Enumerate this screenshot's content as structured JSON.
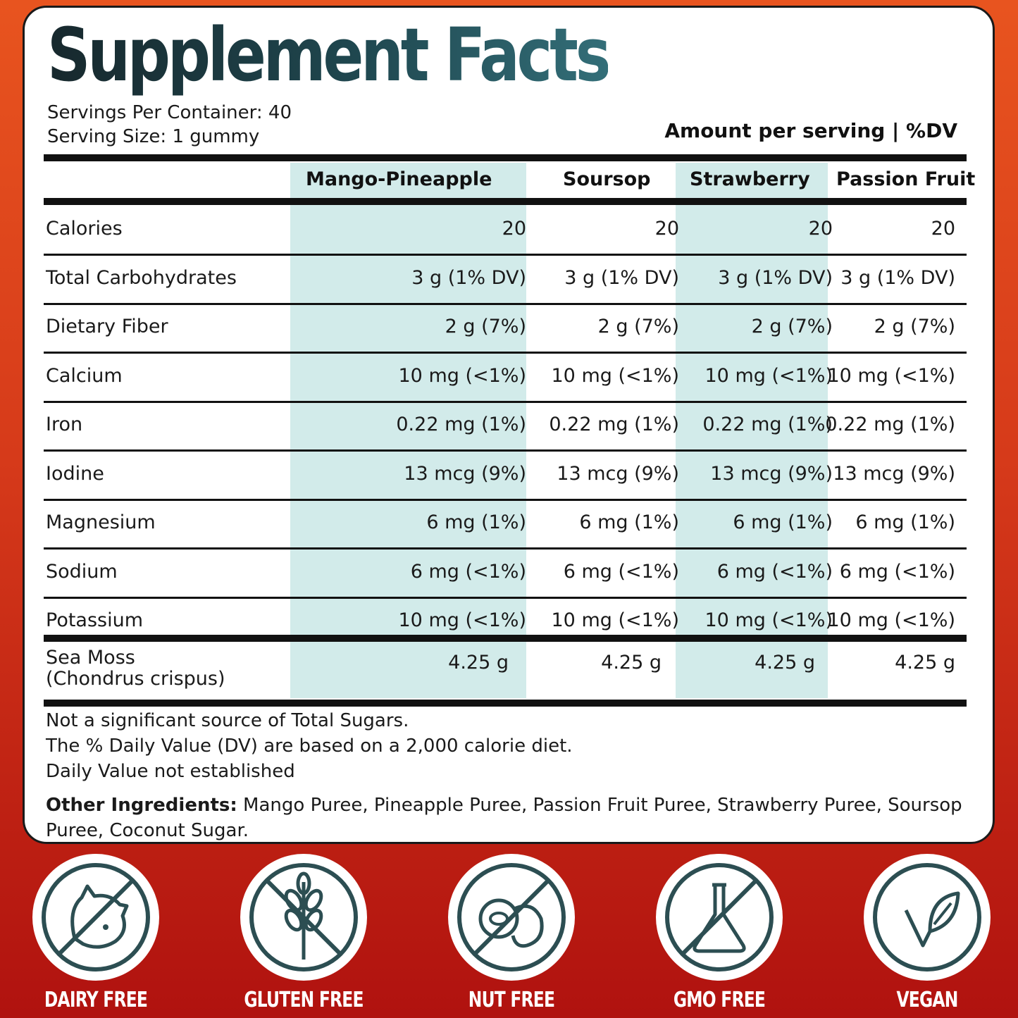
{
  "title": "Supplement Facts",
  "servings_per_container": "Servings Per Container: 40",
  "serving_size": "Serving Size: 1 gummy",
  "amount_header": "Amount per serving | %DV",
  "columns": [
    "Mango-Pineapple",
    "Soursop",
    "Strawberry",
    "Passion Fruit"
  ],
  "rows": [
    {
      "label": "Calories",
      "values": [
        "20",
        "20",
        "20",
        "20"
      ]
    },
    {
      "label": "Total Carbohydrates",
      "values": [
        "3 g (1% DV)",
        "3 g (1% DV)",
        "3 g (1% DV)",
        "3 g (1% DV)"
      ]
    },
    {
      "label": "Dietary Fiber",
      "values": [
        "2 g (7%)",
        "2 g (7%)",
        "2 g (7%)",
        "2 g (7%)"
      ]
    },
    {
      "label": "Calcium",
      "values": [
        "10 mg (<1%)",
        "10 mg (<1%)",
        "10 mg (<1%)",
        "10 mg (<1%)"
      ]
    },
    {
      "label": "Iron",
      "values": [
        "0.22 mg (1%)",
        "0.22 mg (1%)",
        "0.22 mg (1%)",
        "0.22 mg (1%)"
      ]
    },
    {
      "label": "Iodine",
      "values": [
        "13 mcg (9%)",
        "13 mcg (9%)",
        "13 mcg (9%)",
        "13 mcg (9%)"
      ]
    },
    {
      "label": "Magnesium",
      "values": [
        "6 mg (1%)",
        "6 mg (1%)",
        "6 mg (1%)",
        "6 mg (1%)"
      ]
    },
    {
      "label": "Sodium",
      "values": [
        "6 mg (<1%)",
        "6 mg (<1%)",
        "6 mg (<1%)",
        "6 mg (<1%)"
      ]
    },
    {
      "label": "Potassium",
      "values": [
        "10 mg (<1%)",
        "10 mg (<1%)",
        "10 mg (<1%)",
        "10 mg (<1%)"
      ]
    }
  ],
  "sea_moss": {
    "label_line1": "Sea Moss",
    "label_line2": "(Chondrus crispus)",
    "values": [
      "4.25 g",
      "4.25 g",
      "4.25 g",
      "4.25 g"
    ]
  },
  "notes": [
    "Not a significant source of Total Sugars.",
    "The % Daily Value (DV) are based on a 2,000 calorie diet.",
    "Daily Value not established"
  ],
  "ingredients": {
    "heading": "Other Ingredients:",
    "text": " Mango Puree, Pineapple Puree, Passion Fruit Puree, Strawberry Puree, Soursop Puree, Coconut Sugar."
  },
  "badges": [
    {
      "label": "DAIRY FREE",
      "icon": "cow-icon"
    },
    {
      "label": "GLUTEN FREE",
      "icon": "wheat-icon"
    },
    {
      "label": "NUT FREE",
      "icon": "nut-icon"
    },
    {
      "label": "GMO FREE",
      "icon": "flask-icon"
    },
    {
      "label": "VEGAN",
      "icon": "leaf-icon"
    }
  ],
  "colors": {
    "title_dark": "#17282d",
    "title_light": "#336e78",
    "column_highlight": "#d2ebea",
    "icon_stroke": "#2c4e52",
    "background_top": "#e8541f",
    "background_bottom": "#b0120f"
  }
}
